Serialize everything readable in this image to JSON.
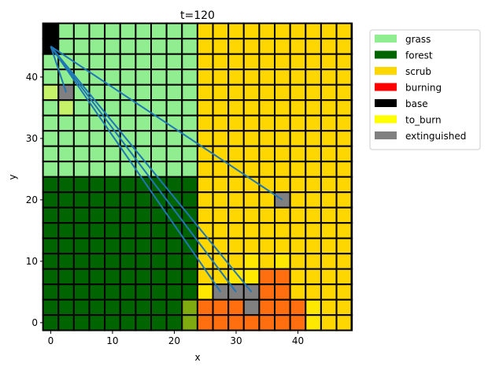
{
  "chart_data": {
    "type": "heatmap",
    "title": "t=120",
    "xlabel": "x",
    "ylabel": "y",
    "xlim": [
      -1.2,
      48.6
    ],
    "ylim": [
      -1.3,
      48.7
    ],
    "xticks": [
      0,
      10,
      20,
      30,
      40
    ],
    "yticks": [
      0,
      10,
      20,
      30,
      40
    ],
    "tick_labels_x": [
      "0",
      "10",
      "20",
      "30",
      "40"
    ],
    "tick_labels_y": [
      "0",
      "10",
      "20",
      "30",
      "40"
    ],
    "cell_size": 2.5,
    "grid_cols": 20,
    "grid_rows": 20,
    "legend_position": "outside-right",
    "legend": [
      {
        "label": "grass",
        "color": "#90EE90"
      },
      {
        "label": "forest",
        "color": "#006400"
      },
      {
        "label": "scrub",
        "color": "#FFD700"
      },
      {
        "label": "burning",
        "color": "#FF0000"
      },
      {
        "label": "base",
        "color": "#000000"
      },
      {
        "label": "to_burn",
        "color": "#FFFF00"
      },
      {
        "label": "extinguished",
        "color": "#808080"
      }
    ],
    "base_regions": [
      {
        "type": "grass",
        "col0": 0,
        "col1": 9,
        "row0": 10,
        "row1": 19
      },
      {
        "type": "forest",
        "col0": 0,
        "col1": 9,
        "row0": 0,
        "row1": 9
      },
      {
        "type": "scrub",
        "col0": 10,
        "col1": 19,
        "row0": 0,
        "row1": 19
      }
    ],
    "special_cells": [
      {
        "col": 0,
        "row": 18,
        "color": "#000000"
      },
      {
        "col": 0,
        "row": 19,
        "color": "#000000"
      },
      {
        "col": 1,
        "row": 15,
        "color": "#808080"
      },
      {
        "col": 0,
        "row": 15,
        "color": "#C6F26A"
      },
      {
        "col": 1,
        "row": 14,
        "color": "#C6F26A"
      },
      {
        "col": 15,
        "row": 8,
        "color": "#808080"
      },
      {
        "col": 9,
        "row": 1,
        "color": "#7FAA10"
      },
      {
        "col": 9,
        "row": 0,
        "color": "#7FAA10"
      },
      {
        "col": 10,
        "row": 1,
        "color": "#FF6F0F"
      },
      {
        "col": 11,
        "row": 1,
        "color": "#FF6F0F"
      },
      {
        "col": 12,
        "row": 1,
        "color": "#FF6F0F"
      },
      {
        "col": 13,
        "row": 1,
        "color": "#808080"
      },
      {
        "col": 14,
        "row": 1,
        "color": "#FF6F0F"
      },
      {
        "col": 15,
        "row": 1,
        "color": "#FF6F0F"
      },
      {
        "col": 16,
        "row": 1,
        "color": "#FF6F0F"
      },
      {
        "col": 17,
        "row": 1,
        "color": "#FFE800"
      },
      {
        "col": 10,
        "row": 0,
        "color": "#FF6F0F"
      },
      {
        "col": 11,
        "row": 0,
        "color": "#FF6F0F"
      },
      {
        "col": 12,
        "row": 0,
        "color": "#FF6F0F"
      },
      {
        "col": 13,
        "row": 0,
        "color": "#FF6F0F"
      },
      {
        "col": 14,
        "row": 0,
        "color": "#FF6F0F"
      },
      {
        "col": 15,
        "row": 0,
        "color": "#FF6F0F"
      },
      {
        "col": 16,
        "row": 0,
        "color": "#FF6F0F"
      },
      {
        "col": 17,
        "row": 0,
        "color": "#FFE800"
      },
      {
        "col": 10,
        "row": 2,
        "color": "#FFE800"
      },
      {
        "col": 11,
        "row": 2,
        "color": "#808080"
      },
      {
        "col": 12,
        "row": 2,
        "color": "#808080"
      },
      {
        "col": 13,
        "row": 2,
        "color": "#808080"
      },
      {
        "col": 14,
        "row": 2,
        "color": "#FF6F0F"
      },
      {
        "col": 15,
        "row": 2,
        "color": "#FF6F0F"
      },
      {
        "col": 14,
        "row": 3,
        "color": "#FF6F0F"
      },
      {
        "col": 15,
        "row": 3,
        "color": "#FF6F0F"
      },
      {
        "col": 12,
        "row": 3,
        "color": "#FFE800"
      },
      {
        "col": 13,
        "row": 3,
        "color": "#FFE800"
      },
      {
        "col": 13,
        "row": 4,
        "color": "#FFE800"
      },
      {
        "col": 15,
        "row": 4,
        "color": "#FFE800"
      }
    ],
    "series": [
      {
        "x": [
          0,
          2.5
        ],
        "y": [
          45,
          37.5
        ]
      },
      {
        "x": [
          0,
          37.5
        ],
        "y": [
          45,
          20
        ]
      },
      {
        "x": [
          0,
          27.5
        ],
        "y": [
          45,
          5
        ]
      },
      {
        "x": [
          0,
          30
        ],
        "y": [
          45,
          5
        ]
      },
      {
        "x": [
          0,
          32.5
        ],
        "y": [
          45,
          5
        ]
      }
    ],
    "line_color": "#1f77b4"
  }
}
